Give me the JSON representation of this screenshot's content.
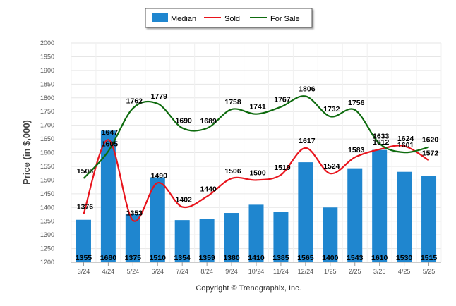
{
  "chart_data": {
    "type": "bar",
    "ylabel": "Price (in $,000)",
    "ylim": [
      1200,
      2000
    ],
    "yticks": [
      1200,
      1250,
      1300,
      1350,
      1400,
      1450,
      1500,
      1550,
      1600,
      1650,
      1700,
      1750,
      1800,
      1850,
      1900,
      1950,
      2000
    ],
    "categories": [
      "3/24",
      "4/24",
      "5/24",
      "6/24",
      "7/24",
      "8/24",
      "9/24",
      "10/24",
      "11/24",
      "12/24",
      "1/25",
      "2/25",
      "3/25",
      "4/25",
      "5/25"
    ],
    "series": [
      {
        "name": "Median",
        "kind": "bar",
        "color": "#1f86cf",
        "values": [
          1355,
          1680,
          1375,
          1510,
          1354,
          1359,
          1380,
          1410,
          1385,
          1565,
          1400,
          1543,
          1610,
          1530,
          1515
        ]
      },
      {
        "name": "Sold",
        "kind": "line",
        "color": "#e8141c",
        "values": [
          1376,
          1647,
          1353,
          1490,
          1402,
          1440,
          1506,
          1500,
          1519,
          1617,
          1524,
          1583,
          1612,
          1624,
          1572
        ]
      },
      {
        "name": "For Sale",
        "kind": "line",
        "color": "#0e6b0e",
        "values": [
          1506,
          1605,
          1762,
          1779,
          1690,
          1689,
          1758,
          1741,
          1767,
          1806,
          1732,
          1756,
          1633,
          1601,
          1620
        ]
      }
    ],
    "legend_position": "top-center",
    "grid": true
  },
  "footer": {
    "copyright": "Copyright © Trendgraphix, Inc."
  }
}
